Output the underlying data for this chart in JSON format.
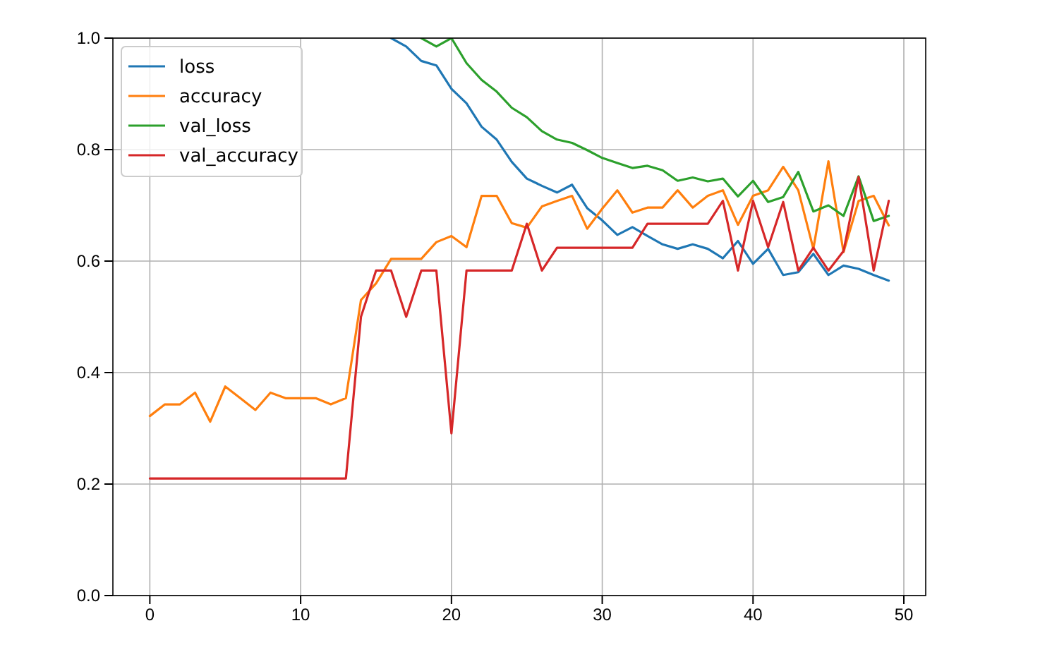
{
  "chart_data": {
    "type": "line",
    "x": [
      0,
      1,
      2,
      3,
      4,
      5,
      6,
      7,
      8,
      9,
      10,
      11,
      12,
      13,
      14,
      15,
      16,
      17,
      18,
      19,
      20,
      21,
      22,
      23,
      24,
      25,
      26,
      27,
      28,
      29,
      30,
      31,
      32,
      33,
      34,
      35,
      36,
      37,
      38,
      39,
      40,
      41,
      42,
      43,
      44,
      45,
      46,
      47,
      48,
      49
    ],
    "series": [
      {
        "name": "loss",
        "color": "#1f77b4",
        "values": [
          null,
          null,
          null,
          null,
          null,
          null,
          null,
          null,
          null,
          null,
          null,
          null,
          null,
          null,
          null,
          null,
          1.0,
          0.985,
          0.959,
          0.951,
          0.909,
          0.883,
          0.841,
          0.818,
          0.778,
          0.748,
          0.735,
          0.723,
          0.737,
          0.695,
          0.673,
          0.647,
          0.661,
          0.645,
          0.63,
          0.622,
          0.63,
          0.622,
          0.605,
          0.636,
          0.595,
          0.622,
          0.575,
          0.58,
          0.613,
          0.575,
          0.592,
          0.586,
          0.575,
          0.565
        ]
      },
      {
        "name": "accuracy",
        "color": "#ff7f0e",
        "values": [
          0.322,
          0.343,
          0.343,
          0.364,
          0.312,
          0.375,
          0.354,
          0.333,
          0.364,
          0.354,
          0.354,
          0.354,
          0.343,
          0.354,
          0.53,
          0.56,
          0.604,
          0.604,
          0.604,
          0.634,
          0.645,
          0.625,
          0.717,
          0.717,
          0.668,
          0.66,
          0.698,
          0.708,
          0.717,
          0.658,
          0.694,
          0.727,
          0.687,
          0.696,
          0.696,
          0.727,
          0.696,
          0.717,
          0.727,
          0.665,
          0.717,
          0.727,
          0.769,
          0.727,
          0.622,
          0.779,
          0.616,
          0.708,
          0.717,
          0.664
        ]
      },
      {
        "name": "val_loss",
        "color": "#2ca02c",
        "values": [
          null,
          null,
          null,
          null,
          null,
          null,
          null,
          null,
          null,
          null,
          null,
          null,
          null,
          null,
          null,
          null,
          null,
          null,
          1.0,
          0.985,
          1.0,
          0.955,
          0.925,
          0.904,
          0.875,
          0.858,
          0.833,
          0.818,
          0.812,
          0.799,
          0.785,
          0.776,
          0.767,
          0.771,
          0.763,
          0.744,
          0.75,
          0.743,
          0.748,
          0.716,
          0.744,
          0.706,
          0.715,
          0.76,
          0.689,
          0.7,
          0.681,
          0.752,
          0.672,
          0.681
        ]
      },
      {
        "name": "val_accuracy",
        "color": "#d62728",
        "values": [
          0.21,
          0.21,
          0.21,
          0.21,
          0.21,
          0.21,
          0.21,
          0.21,
          0.21,
          0.21,
          0.21,
          0.21,
          0.21,
          0.21,
          0.5,
          0.583,
          0.583,
          0.5,
          0.583,
          0.583,
          0.291,
          0.583,
          0.583,
          0.583,
          0.583,
          0.667,
          0.583,
          0.624,
          0.624,
          0.624,
          0.624,
          0.624,
          0.624,
          0.667,
          0.667,
          0.667,
          0.667,
          0.667,
          0.708,
          0.583,
          0.708,
          0.625,
          0.706,
          0.583,
          0.624,
          0.583,
          0.618,
          0.751,
          0.583,
          0.708
        ]
      }
    ],
    "xlim": [
      -2.45,
      51.45
    ],
    "xticks": [
      0,
      10,
      20,
      30,
      40,
      50
    ],
    "ylim": [
      0,
      1
    ],
    "yticks": [
      {
        "value": 0,
        "label": "0.0"
      },
      {
        "value": 0.2,
        "label": "0.2"
      },
      {
        "value": 0.4,
        "label": "0.4"
      },
      {
        "value": 0.6,
        "label": "0.6"
      },
      {
        "value": 0.8,
        "label": "0.8"
      },
      {
        "value": 1,
        "label": "1.0"
      }
    ],
    "grid": true,
    "legend": "top left"
  }
}
